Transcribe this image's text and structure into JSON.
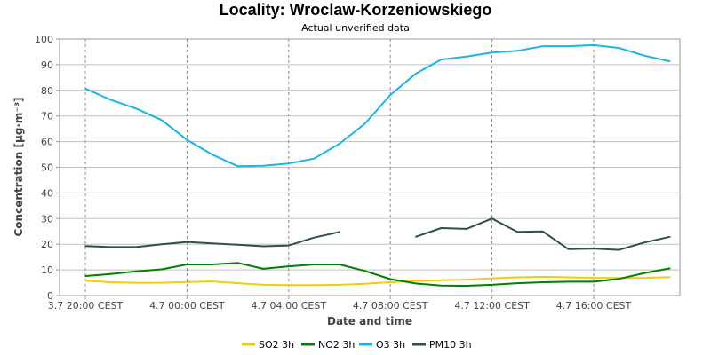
{
  "chart_data": {
    "type": "line",
    "title": "Locality: Wroclaw-Korzeniowskiego",
    "subtitle": "Actual unverified data",
    "xlabel": "Date and time",
    "ylabel": "Concentration [µg·m⁻³]",
    "ylim": [
      0,
      100
    ],
    "yticks": [
      0,
      10,
      20,
      30,
      40,
      50,
      60,
      70,
      80,
      90,
      100
    ],
    "xlim": [
      0,
      24
    ],
    "xticks": [
      {
        "x": 0,
        "label": "3.7 20:00 CEST"
      },
      {
        "x": 4,
        "label": "4.7 00:00 CEST"
      },
      {
        "x": 8,
        "label": "4.7 04:00 CEST"
      },
      {
        "x": 12,
        "label": "4.7 08:00 CEST"
      },
      {
        "x": 16,
        "label": "4.7 12:00 CEST"
      },
      {
        "x": 20,
        "label": "4.7 16:00 CEST"
      }
    ],
    "grid": true,
    "legend_position": "bottom",
    "x": [
      0,
      1,
      2,
      3,
      4,
      5,
      6,
      7,
      8,
      9,
      10,
      11,
      12,
      13,
      14,
      15,
      16,
      17,
      18,
      19,
      20,
      21,
      22,
      23
    ],
    "series": [
      {
        "name": "SO2 3h",
        "color": "#f2cc0c",
        "values": [
          5.8,
          5.2,
          5.0,
          5.0,
          5.3,
          5.5,
          4.8,
          4.2,
          4.1,
          4.1,
          4.2,
          4.6,
          5.2,
          5.7,
          6.0,
          6.2,
          6.7,
          7.1,
          7.3,
          7.1,
          6.9,
          6.8,
          6.9,
          7.2
        ]
      },
      {
        "name": "NO2 3h",
        "color": "#008000",
        "values": [
          7.6,
          8.4,
          9.4,
          10.2,
          12.1,
          12.1,
          12.7,
          10.4,
          11.4,
          12.1,
          12.1,
          9.6,
          6.4,
          4.7,
          3.9,
          3.8,
          4.2,
          4.8,
          5.2,
          5.4,
          5.4,
          6.5,
          8.8,
          10.6
        ]
      },
      {
        "name": "O3 3h",
        "color": "#18b4ec",
        "values": [
          80.7,
          76.3,
          72.9,
          68.4,
          60.7,
          54.9,
          50.4,
          50.6,
          51.5,
          53.4,
          59.2,
          67.0,
          78.2,
          86.5,
          92.0,
          93.2,
          94.7,
          95.4,
          97.2,
          97.2,
          97.6,
          96.5,
          93.5,
          91.3
        ]
      },
      {
        "name": "PM10 3h",
        "color": "#2f4f4f",
        "values": [
          19.3,
          18.9,
          18.9,
          20.0,
          20.9,
          20.3,
          19.8,
          19.2,
          19.5,
          22.6,
          24.8,
          null,
          null,
          22.9,
          26.3,
          26.0,
          30.0,
          24.8,
          25.0,
          18.1,
          18.3,
          17.8,
          20.7,
          22.9
        ]
      }
    ]
  }
}
